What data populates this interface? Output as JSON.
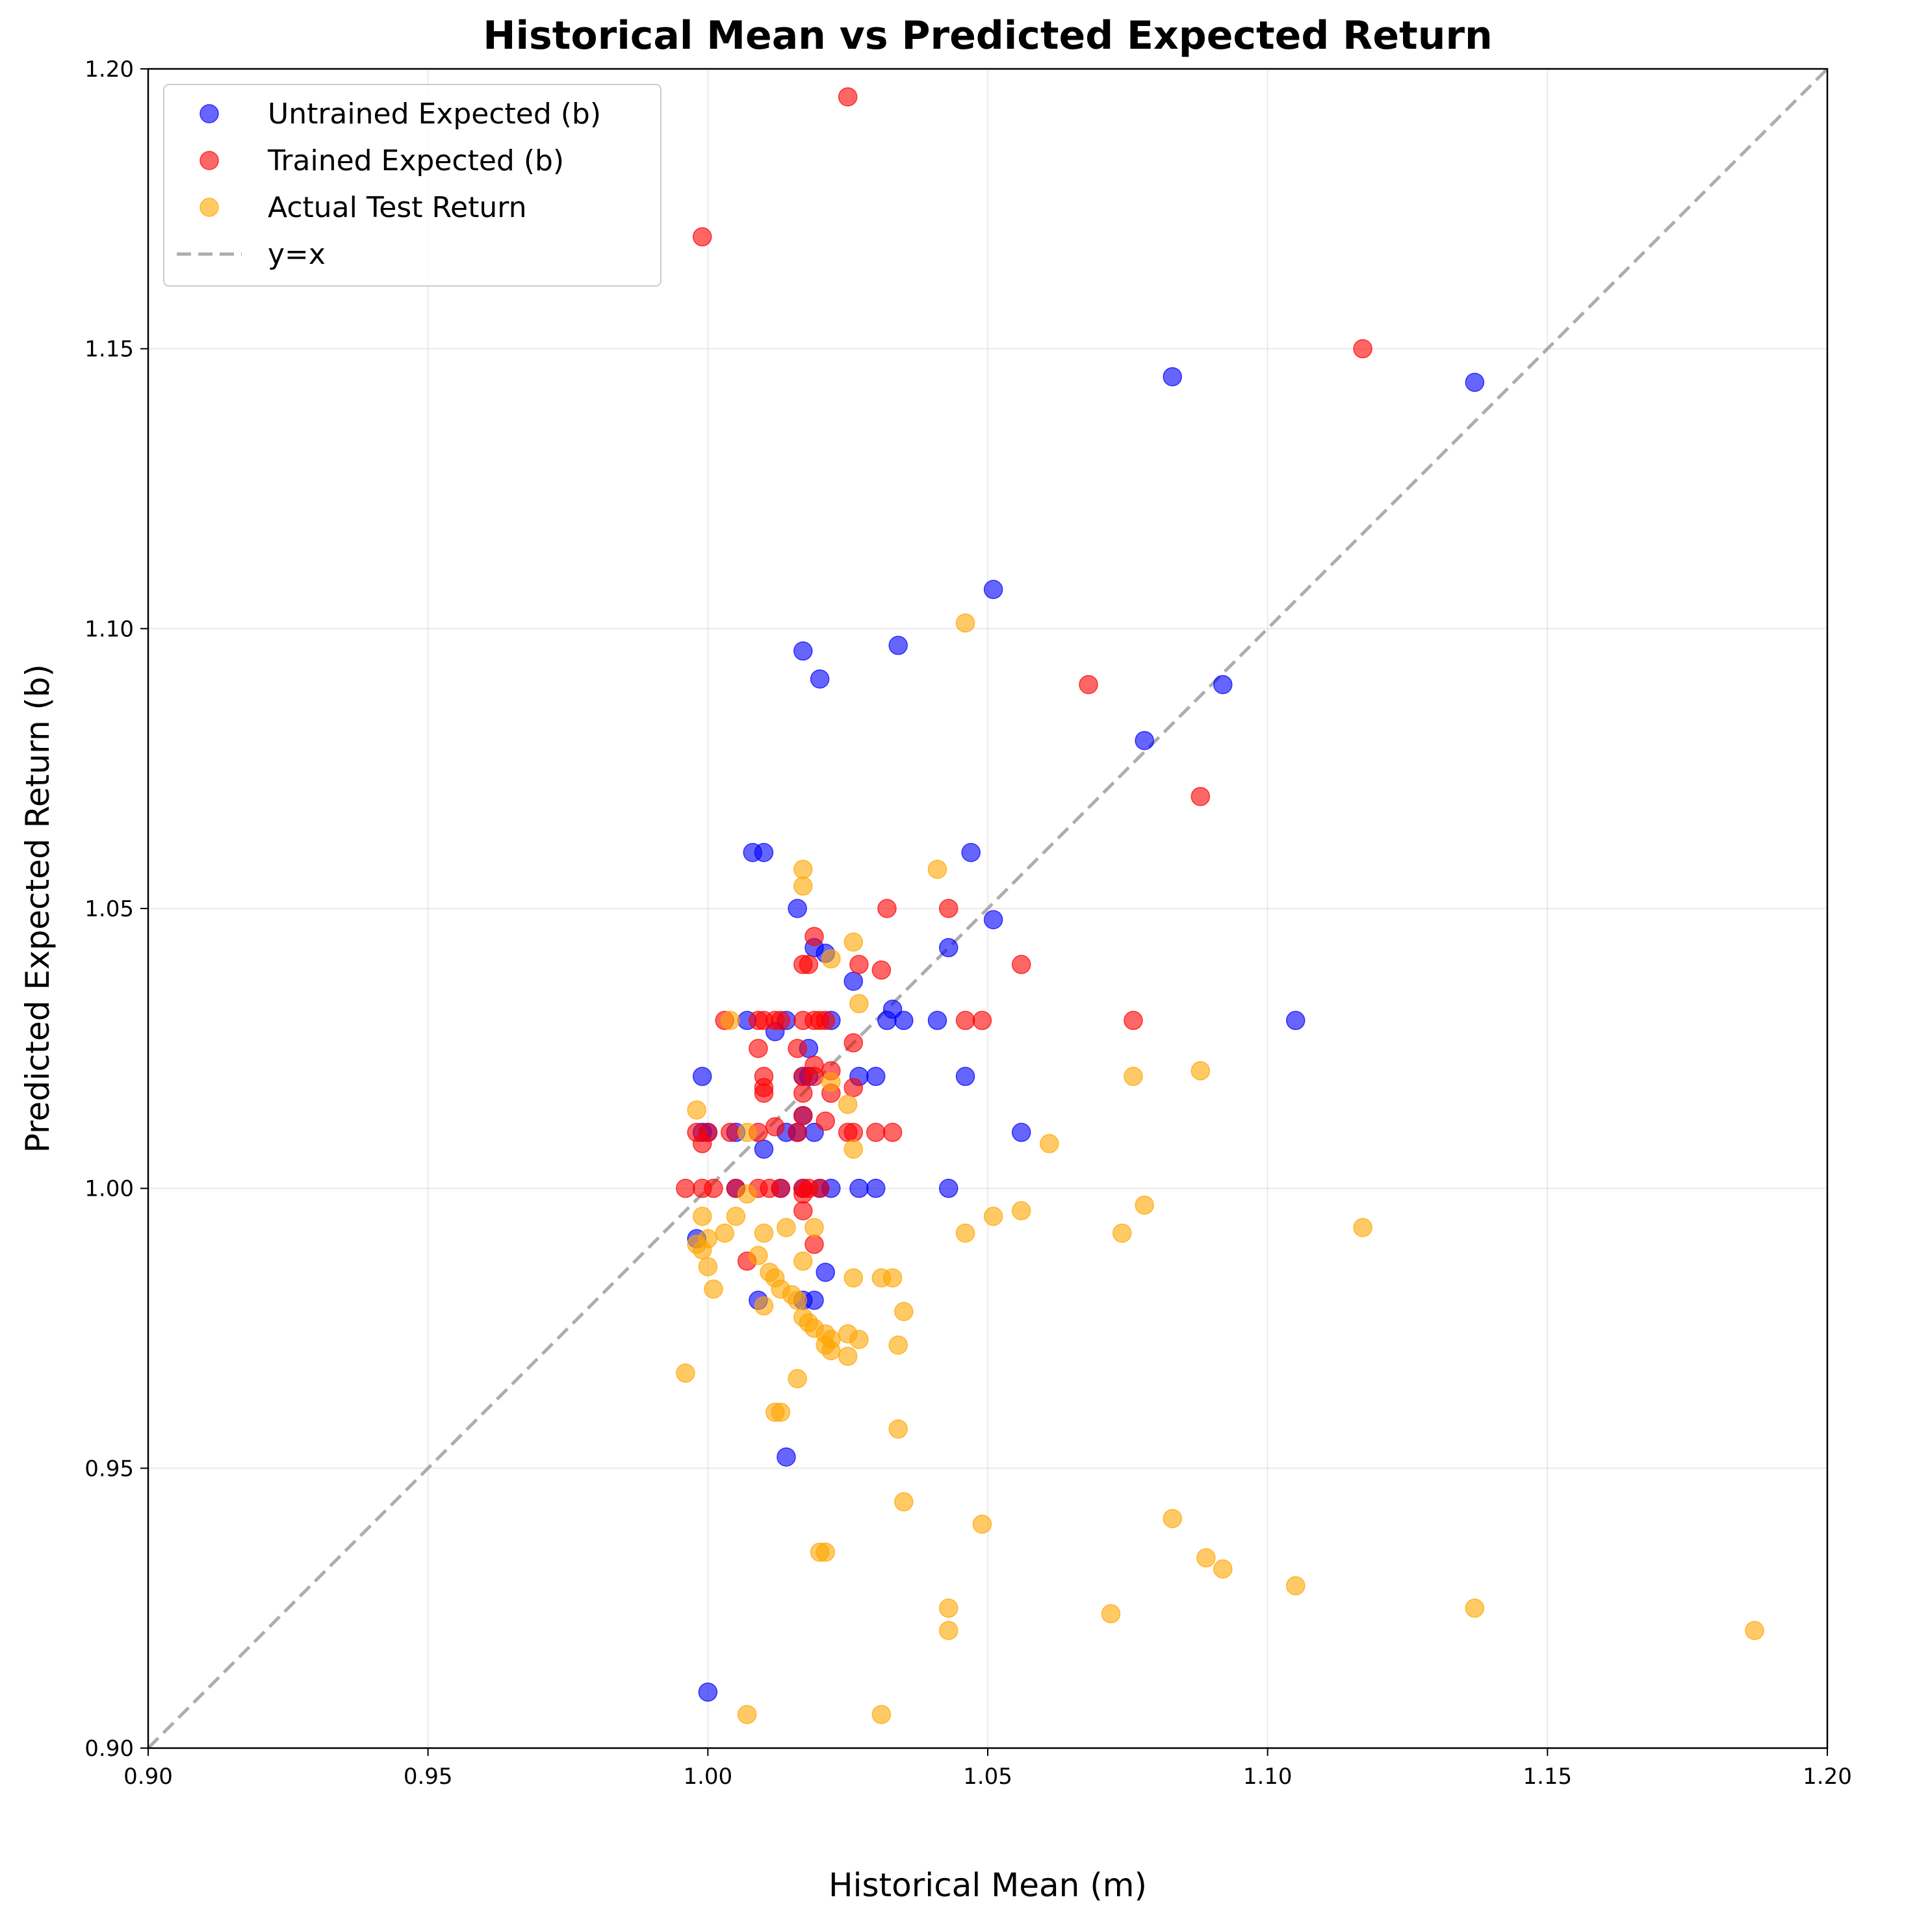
{
  "chart_data": {
    "type": "scatter",
    "title": "Historical Mean vs Predicted Expected Return",
    "xlabel": "Historical Mean (m)",
    "ylabel": "Predicted Expected Return (b)",
    "xlim": [
      0.9,
      1.2
    ],
    "ylim": [
      0.9,
      1.2
    ],
    "xticks": [
      "0.90",
      "0.95",
      "1.00",
      "1.05",
      "1.10",
      "1.15",
      "1.20"
    ],
    "yticks": [
      "0.90",
      "0.95",
      "1.00",
      "1.05",
      "1.10",
      "1.15",
      "1.20"
    ],
    "grid": true,
    "legend_position": "top-left",
    "reference_line": {
      "name": "y=x",
      "color": "#999999",
      "style": "dashed"
    },
    "series": [
      {
        "name": "Untrained Expected (b)",
        "color": "#0000ff",
        "points": [
          [
            1.0,
            0.91
          ],
          [
            1.014,
            0.952
          ],
          [
            1.009,
            0.98
          ],
          [
            1.017,
            0.98
          ],
          [
            1.021,
            0.985
          ],
          [
            1.019,
            0.98
          ],
          [
            0.998,
            0.991
          ],
          [
            1.005,
            1.0
          ],
          [
            1.013,
            1.0
          ],
          [
            1.017,
            1.0
          ],
          [
            1.02,
            1.0
          ],
          [
            1.022,
            1.0
          ],
          [
            1.027,
            1.0
          ],
          [
            1.03,
            1.0
          ],
          [
            1.043,
            1.0
          ],
          [
            0.999,
            1.01
          ],
          [
            1.0,
            1.01
          ],
          [
            1.005,
            1.01
          ],
          [
            1.01,
            1.007
          ],
          [
            1.014,
            1.01
          ],
          [
            1.016,
            1.01
          ],
          [
            1.017,
            1.013
          ],
          [
            1.019,
            1.01
          ],
          [
            1.056,
            1.01
          ],
          [
            0.999,
            1.02
          ],
          [
            1.017,
            1.02
          ],
          [
            1.018,
            1.02
          ],
          [
            1.027,
            1.02
          ],
          [
            1.03,
            1.02
          ],
          [
            1.046,
            1.02
          ],
          [
            1.018,
            1.025
          ],
          [
            1.012,
            1.028
          ],
          [
            1.007,
            1.03
          ],
          [
            1.014,
            1.03
          ],
          [
            1.022,
            1.03
          ],
          [
            1.032,
            1.03
          ],
          [
            1.035,
            1.03
          ],
          [
            1.041,
            1.03
          ],
          [
            1.105,
            1.03
          ],
          [
            1.033,
            1.032
          ],
          [
            1.026,
            1.037
          ],
          [
            1.019,
            1.043
          ],
          [
            1.021,
            1.042
          ],
          [
            1.043,
            1.043
          ],
          [
            1.016,
            1.05
          ],
          [
            1.051,
            1.048
          ],
          [
            1.008,
            1.06
          ],
          [
            1.01,
            1.06
          ],
          [
            1.047,
            1.06
          ],
          [
            1.078,
            1.08
          ],
          [
            1.02,
            1.091
          ],
          [
            1.092,
            1.09
          ],
          [
            1.017,
            1.096
          ],
          [
            1.034,
            1.097
          ],
          [
            1.051,
            1.107
          ],
          [
            1.083,
            1.145
          ],
          [
            1.137,
            1.144
          ]
        ]
      },
      {
        "name": "Trained Expected (b)",
        "color": "#ff0000",
        "points": [
          [
            0.999,
            1.17
          ],
          [
            1.025,
            1.195
          ],
          [
            1.117,
            1.15
          ],
          [
            1.068,
            1.09
          ],
          [
            1.088,
            1.07
          ],
          [
            1.032,
            1.05
          ],
          [
            1.043,
            1.05
          ],
          [
            1.019,
            1.045
          ],
          [
            1.017,
            1.04
          ],
          [
            1.018,
            1.04
          ],
          [
            1.027,
            1.04
          ],
          [
            1.056,
            1.04
          ],
          [
            1.031,
            1.039
          ],
          [
            1.003,
            1.03
          ],
          [
            1.009,
            1.03
          ],
          [
            1.01,
            1.03
          ],
          [
            1.012,
            1.03
          ],
          [
            1.013,
            1.03
          ],
          [
            1.017,
            1.03
          ],
          [
            1.019,
            1.03
          ],
          [
            1.02,
            1.03
          ],
          [
            1.021,
            1.03
          ],
          [
            1.046,
            1.03
          ],
          [
            1.049,
            1.03
          ],
          [
            1.076,
            1.03
          ],
          [
            1.026,
            1.026
          ],
          [
            1.009,
            1.025
          ],
          [
            1.016,
            1.025
          ],
          [
            1.019,
            1.022
          ],
          [
            1.01,
            1.02
          ],
          [
            1.017,
            1.02
          ],
          [
            1.022,
            1.021
          ],
          [
            1.019,
            1.02
          ],
          [
            1.01,
            1.018
          ],
          [
            1.026,
            1.018
          ],
          [
            1.017,
            1.017
          ],
          [
            1.01,
            1.017
          ],
          [
            1.022,
            1.017
          ],
          [
            1.017,
            1.013
          ],
          [
            1.021,
            1.012
          ],
          [
            1.012,
            1.011
          ],
          [
            0.998,
            1.01
          ],
          [
            1.0,
            1.01
          ],
          [
            1.004,
            1.01
          ],
          [
            1.009,
            1.01
          ],
          [
            1.016,
            1.01
          ],
          [
            1.025,
            1.01
          ],
          [
            1.026,
            1.01
          ],
          [
            1.03,
            1.01
          ],
          [
            1.033,
            1.01
          ],
          [
            0.999,
            1.008
          ],
          [
            0.996,
            1.0
          ],
          [
            0.999,
            1.0
          ],
          [
            1.001,
            1.0
          ],
          [
            1.005,
            1.0
          ],
          [
            1.009,
            1.0
          ],
          [
            1.011,
            1.0
          ],
          [
            1.013,
            1.0
          ],
          [
            1.017,
            1.0
          ],
          [
            1.018,
            1.0
          ],
          [
            1.02,
            1.0
          ],
          [
            1.017,
            0.999
          ],
          [
            1.017,
            0.996
          ],
          [
            1.007,
            0.987
          ],
          [
            1.019,
            0.99
          ]
        ]
      },
      {
        "name": "Actual Test Return",
        "color": "#ffa500",
        "points": [
          [
            1.046,
            1.101
          ],
          [
            1.041,
            1.057
          ],
          [
            1.017,
            1.057
          ],
          [
            1.017,
            1.054
          ],
          [
            1.026,
            1.044
          ],
          [
            1.022,
            1.041
          ],
          [
            1.027,
            1.033
          ],
          [
            1.004,
            1.03
          ],
          [
            1.088,
            1.021
          ],
          [
            1.076,
            1.02
          ],
          [
            1.022,
            1.019
          ],
          [
            1.025,
            1.015
          ],
          [
            0.998,
            1.014
          ],
          [
            1.007,
            1.01
          ],
          [
            1.026,
            1.007
          ],
          [
            1.061,
            1.008
          ],
          [
            1.007,
            0.999
          ],
          [
            1.078,
            0.997
          ],
          [
            1.056,
            0.996
          ],
          [
            1.051,
            0.995
          ],
          [
            1.005,
            0.995
          ],
          [
            0.999,
            0.995
          ],
          [
            1.014,
            0.993
          ],
          [
            1.117,
            0.993
          ],
          [
            1.019,
            0.993
          ],
          [
            1.046,
            0.992
          ],
          [
            1.074,
            0.992
          ],
          [
            1.01,
            0.992
          ],
          [
            1.003,
            0.992
          ],
          [
            1.0,
            0.991
          ],
          [
            0.998,
            0.99
          ],
          [
            0.999,
            0.989
          ],
          [
            1.009,
            0.988
          ],
          [
            1.017,
            0.987
          ],
          [
            1.0,
            0.986
          ],
          [
            1.011,
            0.985
          ],
          [
            1.012,
            0.984
          ],
          [
            1.026,
            0.984
          ],
          [
            1.031,
            0.984
          ],
          [
            1.033,
            0.984
          ],
          [
            1.013,
            0.982
          ],
          [
            1.001,
            0.982
          ],
          [
            1.015,
            0.981
          ],
          [
            1.016,
            0.98
          ],
          [
            1.01,
            0.979
          ],
          [
            1.035,
            0.978
          ],
          [
            1.017,
            0.977
          ],
          [
            1.018,
            0.976
          ],
          [
            1.019,
            0.975
          ],
          [
            1.021,
            0.974
          ],
          [
            1.025,
            0.974
          ],
          [
            1.027,
            0.973
          ],
          [
            1.022,
            0.973
          ],
          [
            1.021,
            0.972
          ],
          [
            1.034,
            0.972
          ],
          [
            1.022,
            0.971
          ],
          [
            1.025,
            0.97
          ],
          [
            0.996,
            0.967
          ],
          [
            1.016,
            0.966
          ],
          [
            1.013,
            0.96
          ],
          [
            1.012,
            0.96
          ],
          [
            1.034,
            0.957
          ],
          [
            1.035,
            0.944
          ],
          [
            1.083,
            0.941
          ],
          [
            1.049,
            0.94
          ],
          [
            1.02,
            0.935
          ],
          [
            1.021,
            0.935
          ],
          [
            1.089,
            0.934
          ],
          [
            1.092,
            0.932
          ],
          [
            1.105,
            0.929
          ],
          [
            1.043,
            0.925
          ],
          [
            1.137,
            0.925
          ],
          [
            1.072,
            0.924
          ],
          [
            1.043,
            0.921
          ],
          [
            1.187,
            0.921
          ],
          [
            1.007,
            0.906
          ],
          [
            1.031,
            0.906
          ]
        ]
      }
    ]
  }
}
